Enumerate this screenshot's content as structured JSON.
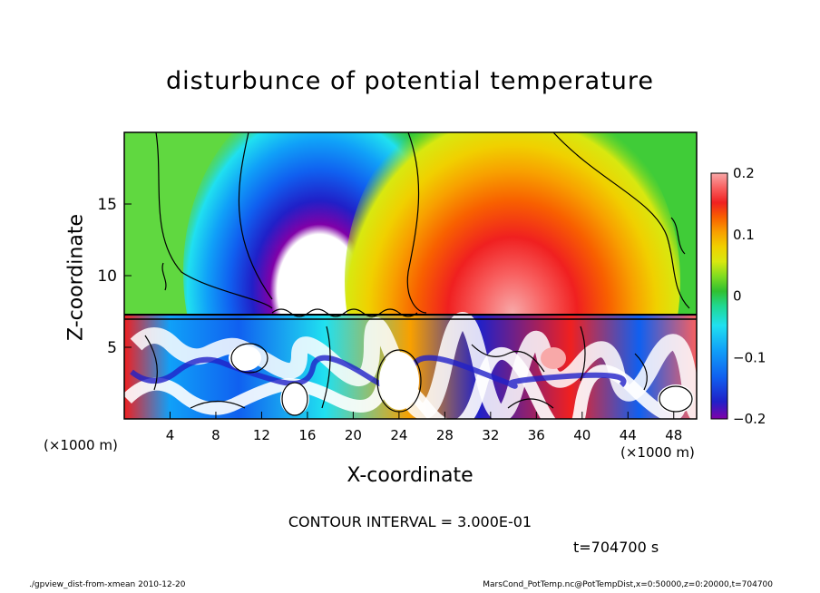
{
  "title": "disturbunce of potential temperature",
  "chart_data": {
    "type": "heatmap",
    "title": "disturbunce of potential temperature",
    "xlabel": "X-coordinate",
    "ylabel": "Z-coordinate",
    "x_unit": "(×1000 m)",
    "z_unit": "(×1000 m)",
    "xlim": [
      0,
      50
    ],
    "ylim": [
      0,
      20
    ],
    "x_ticks": [
      "4",
      "8",
      "12",
      "16",
      "20",
      "24",
      "28",
      "32",
      "36",
      "40",
      "44",
      "48"
    ],
    "y_ticks": [
      "5",
      "10",
      "15"
    ],
    "colorbar": {
      "range": [
        -0.2,
        0.2
      ],
      "ticks": [
        "0.2",
        "0.1",
        "0",
        "−0.1",
        "−0.2"
      ],
      "colors": [
        "#8000a8",
        "#2020c8",
        "#1060f0",
        "#10a0f8",
        "#20e0f0",
        "#20d890",
        "#30c030",
        "#80dc20",
        "#d8e810",
        "#f0d000",
        "#f8a000",
        "#f86000",
        "#f02020",
        "#f86060",
        "#f8a8a8"
      ]
    },
    "features": [
      {
        "type": "negative-maximum",
        "x_center": 17,
        "z_range": [
          7.5,
          18.5
        ],
        "value": -0.2
      },
      {
        "type": "positive-maximum",
        "x_center": 34,
        "z_range": [
          7.5,
          19
        ],
        "value": 0.15
      },
      {
        "type": "turbulent-layer",
        "z_range": [
          0,
          7.5
        ]
      }
    ],
    "contour_interval": "CONTOUR INTERVAL = 3.000E-01",
    "time": "t=704700 s"
  },
  "footer": {
    "left": "./gpview_dist-from-xmean  2010-12-20",
    "right": "MarsCond_PotTemp.nc@PotTempDist,x=0:50000,z=0:20000,t=704700"
  }
}
